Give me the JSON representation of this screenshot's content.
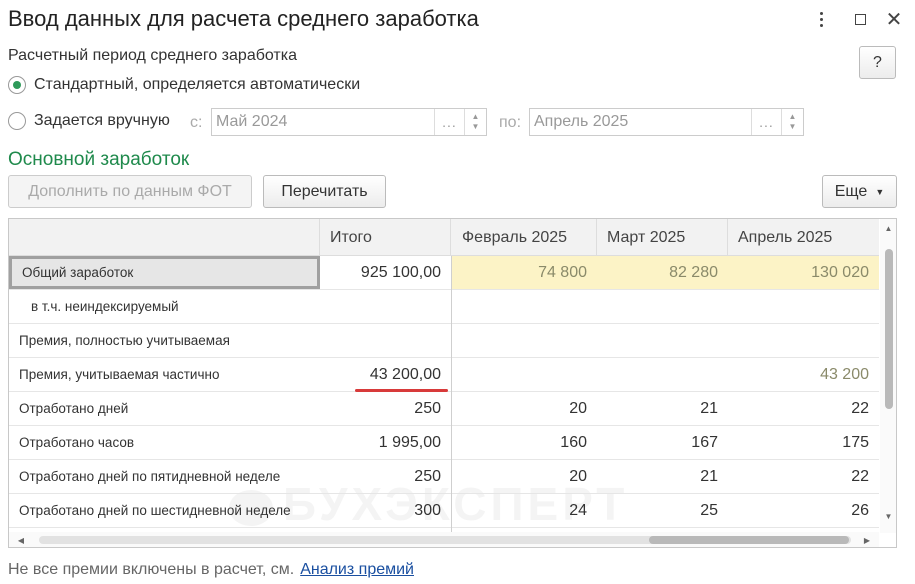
{
  "window": {
    "title": "Ввод данных для расчета среднего заработка",
    "icons": {
      "more": "more-vertical-icon",
      "maximize": "maximize-icon",
      "close": "close-icon"
    }
  },
  "help_label": "?",
  "period": {
    "label": "Расчетный период среднего заработка",
    "option_auto": "Стандартный, определяется автоматически",
    "option_manual": "Задается вручную",
    "from_label": "с:",
    "from_value": "Май 2024",
    "to_label": "по:",
    "to_value": "Апрель 2025",
    "select_label": "...",
    "selected": "auto"
  },
  "main_earnings": {
    "title": "Основной заработок",
    "fill_button": "Дополнить по данным ФОТ",
    "reread_button": "Перечитать",
    "more_button": "Еще"
  },
  "table": {
    "headers": [
      "",
      "Итого",
      "Февраль 2025",
      "Март 2025",
      "Апрель 2025"
    ],
    "rows": [
      {
        "name": "Общий заработок",
        "total": "925 100,00",
        "m1": "74 800",
        "m2": "82 280",
        "m3": "130 020"
      },
      {
        "name": "в т.ч. неиндексируемый",
        "total": "",
        "m1": "",
        "m2": "",
        "m3": ""
      },
      {
        "name": "Премия, полностью учитываемая",
        "total": "",
        "m1": "",
        "m2": "",
        "m3": ""
      },
      {
        "name": "Премия, учитываемая частично",
        "total": "43 200,00",
        "m1": "",
        "m2": "",
        "m3": "43 200"
      },
      {
        "name": "Отработано дней",
        "total": "250",
        "m1": "20",
        "m2": "21",
        "m3": "22"
      },
      {
        "name": "Отработано часов",
        "total": "1 995,00",
        "m1": "160",
        "m2": "167",
        "m3": "175"
      },
      {
        "name": "Отработано дней по пятидневной неделе",
        "total": "250",
        "m1": "20",
        "m2": "21",
        "m3": "22"
      },
      {
        "name": "Отработано дней по шестидневной неделе",
        "total": "300",
        "m1": "24",
        "m2": "25",
        "m3": "26"
      }
    ]
  },
  "watermark": "БУХЭКСПЕРТ",
  "footer": {
    "text": "Не все премии включены в расчет, см.",
    "link": "Анализ премий"
  },
  "colors": {
    "accent": "#1f8a4c",
    "highlight": "#fcf3c6",
    "annotation": "#d83a3a",
    "link": "#1a4fa0"
  }
}
